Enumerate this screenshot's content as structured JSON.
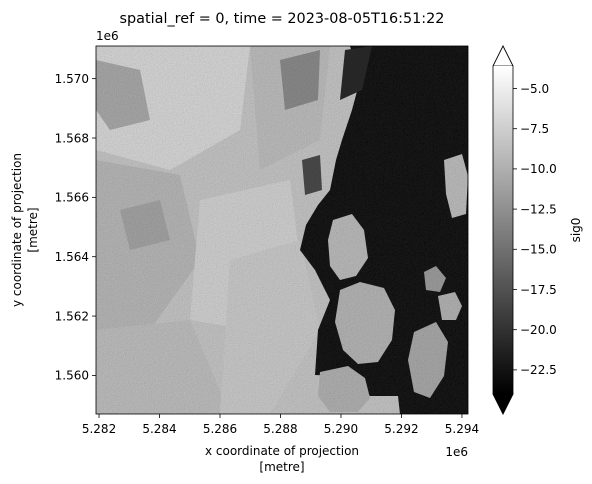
{
  "chart_data": {
    "type": "heatmap",
    "title": "spatial_ref = 0, time = 2023-08-05T16:51:22",
    "xlabel": [
      "x coordinate of projection",
      "[metre]"
    ],
    "ylabel": [
      "y coordinate of projection",
      "[metre]"
    ],
    "x_offset_label": "1e6",
    "y_offset_label": "1e6",
    "x_ticks": [
      5.282,
      5.284,
      5.286,
      5.288,
      5.29,
      5.292,
      5.294
    ],
    "x_tick_labels": [
      "5.282",
      "5.284",
      "5.286",
      "5.288",
      "5.290",
      "5.292",
      "5.294"
    ],
    "y_ticks": [
      1.56,
      1.562,
      1.564,
      1.566,
      1.568,
      1.57
    ],
    "y_tick_labels": [
      "1.560",
      "1.562",
      "1.564",
      "1.566",
      "1.568",
      "1.570"
    ],
    "xlim": [
      5.2819,
      5.2942
    ],
    "ylim": [
      1.5587,
      1.5711
    ],
    "colormap": "gray",
    "colorbar": {
      "label": "sig0",
      "vmin": -24.0,
      "vmax": -3.6,
      "extend": "both",
      "ticks": [
        -22.5,
        -20.0,
        -17.5,
        -15.0,
        -12.5,
        -10.0,
        -7.5,
        -5.0
      ],
      "tick_labels": [
        "−22.5",
        "−20.0",
        "−17.5",
        "−15.0",
        "−12.5",
        "−10.0",
        "−7.5",
        "−5.0"
      ]
    },
    "legend": "none",
    "grid": false
  }
}
